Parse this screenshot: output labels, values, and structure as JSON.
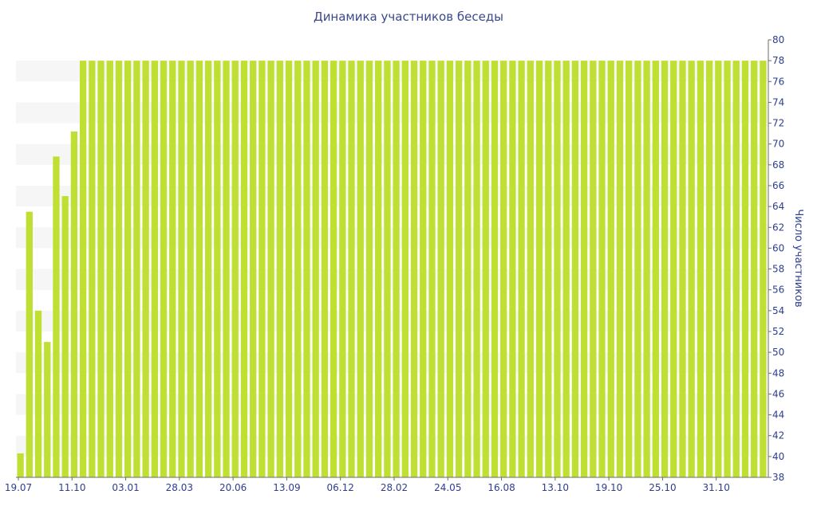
{
  "chart_data": {
    "type": "bar",
    "title": "Динамика участников беседы",
    "xlabel": "",
    "ylabel": "Число участников",
    "ylim": [
      38,
      80
    ],
    "yticks": [
      38,
      40,
      42,
      44,
      46,
      48,
      50,
      52,
      54,
      56,
      58,
      60,
      62,
      64,
      66,
      68,
      70,
      72,
      74,
      76,
      78,
      80
    ],
    "xtick_labels": [
      "19.07",
      "11.10",
      "03.01",
      "28.03",
      "20.06",
      "13.09",
      "06.12",
      "28.02",
      "24.05",
      "16.08",
      "13.10",
      "19.10",
      "25.10",
      "31.10"
    ],
    "y_axis_side": "right",
    "grid": "alternating horizontal bands",
    "bar_color": "#bfe033",
    "values": [
      40.3,
      63.5,
      54,
      51,
      68.8,
      65,
      71.2,
      78,
      78,
      78,
      78,
      78,
      78,
      78,
      78,
      78,
      78,
      78,
      78,
      78,
      78,
      78,
      78,
      78,
      78,
      78,
      78,
      78,
      78,
      78,
      78,
      78,
      78,
      78,
      78,
      78,
      78,
      78,
      78,
      78,
      78,
      78,
      78,
      78,
      78,
      78,
      78,
      78,
      78,
      78,
      78,
      78,
      78,
      78,
      78,
      78,
      78,
      78,
      78,
      78,
      78,
      78,
      78,
      78,
      78,
      78,
      78,
      78,
      78,
      78,
      78,
      78,
      78,
      78,
      78,
      78,
      78,
      78,
      78,
      78,
      78,
      78,
      78,
      78
    ]
  }
}
